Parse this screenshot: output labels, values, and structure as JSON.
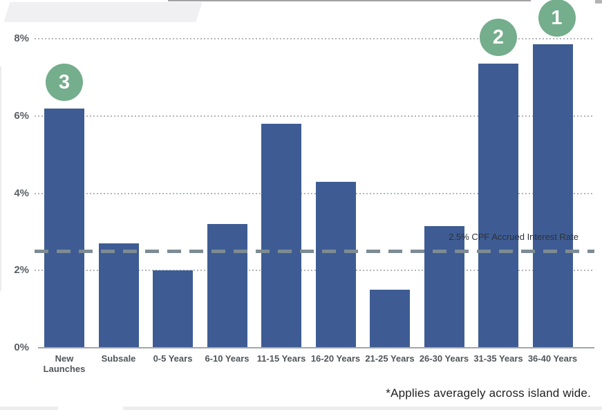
{
  "chart_data": {
    "type": "bar",
    "title": "",
    "categories": [
      "New Launches",
      "Subsale",
      "0-5 Years",
      "6-10 Years",
      "11-15 Years",
      "16-20 Years",
      "21-25 Years",
      "26-30 Years",
      "31-35 Years",
      "36-40 Years"
    ],
    "values": [
      6.2,
      2.7,
      2.0,
      3.2,
      5.8,
      4.3,
      1.5,
      3.15,
      7.35,
      7.85
    ],
    "xlabel": "",
    "ylabel": "",
    "ylim": [
      0,
      8
    ],
    "yticks": [
      {
        "value": 0,
        "label": "0%"
      },
      {
        "value": 2,
        "label": "2%"
      },
      {
        "value": 4,
        "label": "4%"
      },
      {
        "value": 6,
        "label": "6%"
      },
      {
        "value": 8,
        "label": "8%"
      }
    ],
    "grid": "dotted horizontal",
    "legend": "none",
    "reference_line": {
      "value": 2.5,
      "label": "2.5% CPF Accrued Interest Rate"
    },
    "rank_badges": [
      {
        "category_index": 0,
        "rank": 3
      },
      {
        "category_index": 8,
        "rank": 2
      },
      {
        "category_index": 9,
        "rank": 1
      }
    ],
    "colors": {
      "bar": "#3e5c93",
      "badge": "#74ae8c",
      "badge_text": "#ffffff",
      "gridline": "#b2b4b8",
      "reference_line": "#7d8c94",
      "axis_text": "#5a6066"
    }
  },
  "footnote": "*Applies averagely across island wide."
}
